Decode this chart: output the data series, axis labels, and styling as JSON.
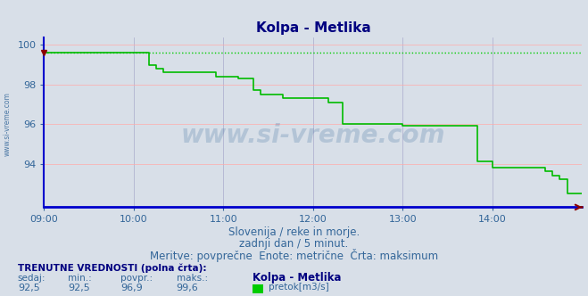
{
  "title": "Kolpa - Metlika",
  "title_color": "#000080",
  "bg_color": "#d8dfe8",
  "plot_bg_color": "#d8dfe8",
  "line_color": "#00bb00",
  "max_line_color": "#00cc00",
  "axis_left_color": "#0000cc",
  "axis_bottom_color": "#0000cc",
  "grid_color_v": "#aaaacc",
  "grid_color_h": "#ffaaaa",
  "tick_color": "#336699",
  "xlim": [
    0,
    360
  ],
  "ylim": [
    91.8,
    100.4
  ],
  "yticks": [
    94,
    96,
    98,
    100
  ],
  "xtick_labels": [
    "09:00",
    "10:00",
    "11:00",
    "12:00",
    "13:00",
    "14:00"
  ],
  "xtick_positions": [
    0,
    60,
    120,
    180,
    240,
    300
  ],
  "max_value": 99.6,
  "subtitle1": "Slovenija / reke in morje.",
  "subtitle2": "zadnji dan / 5 minut.",
  "subtitle3": "Meritve: povprečne  Enote: metrične  Črta: maksimum",
  "footer_label": "TRENUTNE VREDNOSTI (polna črta):",
  "footer_cols": [
    "sedaj:",
    "min.:",
    "povpr.:",
    "maks.:"
  ],
  "footer_vals": [
    "92,5",
    "92,5",
    "96,9",
    "99,6"
  ],
  "legend_label": "pretok[m3/s]",
  "legend_station": "Kolpa - Metlika",
  "watermark": "www.si-vreme.com",
  "left_label": "www.si-vreme.com",
  "data_x": [
    0,
    5,
    10,
    15,
    20,
    25,
    30,
    35,
    40,
    45,
    50,
    55,
    60,
    65,
    70,
    75,
    80,
    85,
    90,
    95,
    100,
    105,
    110,
    115,
    120,
    125,
    130,
    135,
    140,
    145,
    150,
    155,
    160,
    165,
    170,
    175,
    180,
    185,
    190,
    195,
    200,
    205,
    210,
    215,
    220,
    225,
    230,
    235,
    240,
    245,
    250,
    255,
    260,
    265,
    270,
    275,
    280,
    285,
    290,
    295,
    300,
    305,
    310,
    315,
    320,
    325,
    330,
    335,
    340,
    345,
    350,
    355,
    360
  ],
  "data_y": [
    99.6,
    99.6,
    99.6,
    99.6,
    99.6,
    99.6,
    99.6,
    99.6,
    99.6,
    99.6,
    99.6,
    99.6,
    99.6,
    99.6,
    99.0,
    98.8,
    98.6,
    98.6,
    98.6,
    98.6,
    98.6,
    98.6,
    98.6,
    98.4,
    98.4,
    98.4,
    98.3,
    98.3,
    97.7,
    97.5,
    97.5,
    97.5,
    97.3,
    97.3,
    97.3,
    97.3,
    97.3,
    97.3,
    97.1,
    97.1,
    96.0,
    96.0,
    96.0,
    96.0,
    96.0,
    96.0,
    96.0,
    96.0,
    95.9,
    95.9,
    95.9,
    95.9,
    95.9,
    95.9,
    95.9,
    95.9,
    95.9,
    95.9,
    94.1,
    94.1,
    93.8,
    93.8,
    93.8,
    93.8,
    93.8,
    93.8,
    93.8,
    93.6,
    93.4,
    93.2,
    92.5,
    92.5,
    92.5
  ]
}
